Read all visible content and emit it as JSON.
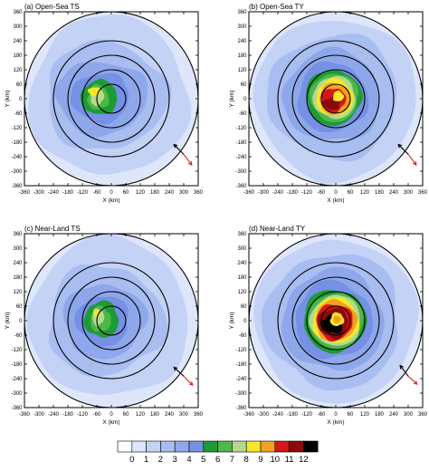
{
  "chart_data": [
    {
      "type": "heatmap",
      "title": "(a) Open-Sea TS",
      "xlabel": "X (km)",
      "ylabel": "Y (km)",
      "xlim": [
        -360,
        360
      ],
      "ylim": [
        -360,
        360
      ],
      "ticks": [
        -360,
        -300,
        -240,
        -180,
        -120,
        -60,
        0,
        60,
        120,
        180,
        240,
        300,
        360
      ],
      "rings_km": [
        60,
        120,
        180,
        240,
        360
      ],
      "center_offset_km": [
        0,
        0
      ],
      "field_levels": [
        {
          "level": 1,
          "r": 330,
          "cx": -10,
          "cy": 10,
          "sx": 1.0,
          "sy": 1.0,
          "wob": 0.08
        },
        {
          "level": 2,
          "r": 250,
          "cx": -25,
          "cy": 10,
          "sx": 1.0,
          "sy": 0.9,
          "wob": 0.12
        },
        {
          "level": 3,
          "r": 180,
          "cx": -40,
          "cy": 5,
          "sx": 1.05,
          "sy": 0.85,
          "wob": 0.12
        },
        {
          "level": 4,
          "r": 120,
          "cx": -45,
          "cy": 5,
          "sx": 1.0,
          "sy": 0.85,
          "wob": 0.12
        },
        {
          "level": 5,
          "r": 80,
          "cx": -50,
          "cy": 5,
          "sx": 0.95,
          "sy": 0.9,
          "wob": 0.1
        },
        {
          "level": 6,
          "r": 52,
          "cx": -55,
          "cy": 5,
          "sx": 0.85,
          "sy": 1.0,
          "wob": 0.15
        },
        {
          "level": 7,
          "r": 35,
          "cx": -60,
          "cy": 10,
          "sx": 0.8,
          "sy": 1.1,
          "wob": 0.15
        },
        {
          "level": 8,
          "r": 22,
          "cx": -70,
          "cy": 30,
          "sx": 1.2,
          "sy": 0.8,
          "wob": 0.15
        }
      ],
      "shear_arrow": {
        "dx": -0.55,
        "dy": 0.55
      },
      "motion_arrow": {
        "dx": 0.45,
        "dy": -0.6
      }
    },
    {
      "type": "heatmap",
      "title": "(b) Open-Sea TY",
      "xlabel": "X (km)",
      "ylabel": "Y (km)",
      "xlim": [
        -360,
        360
      ],
      "ylim": [
        -360,
        360
      ],
      "ticks": [
        -360,
        -300,
        -240,
        -180,
        -120,
        -60,
        0,
        60,
        120,
        180,
        240,
        300,
        360
      ],
      "rings_km": [
        60,
        120,
        180,
        240,
        360
      ],
      "center_offset_km": [
        0,
        0
      ],
      "field_levels": [
        {
          "level": 1,
          "r": 335,
          "cx": 0,
          "cy": 0,
          "sx": 1.0,
          "sy": 1.0,
          "wob": 0.06
        },
        {
          "level": 2,
          "r": 270,
          "cx": -10,
          "cy": 10,
          "sx": 1.0,
          "sy": 0.95,
          "wob": 0.1
        },
        {
          "level": 3,
          "r": 200,
          "cx": -15,
          "cy": 10,
          "sx": 1.0,
          "sy": 0.95,
          "wob": 0.1
        },
        {
          "level": 4,
          "r": 145,
          "cx": -15,
          "cy": 5,
          "sx": 1.0,
          "sy": 1.0,
          "wob": 0.1
        },
        {
          "level": 5,
          "r": 115,
          "cx": -10,
          "cy": 5,
          "sx": 1.0,
          "sy": 1.0,
          "wob": 0.08
        },
        {
          "level": 6,
          "r": 100,
          "cx": -5,
          "cy": 5,
          "sx": 1.0,
          "sy": 1.0,
          "wob": 0.08
        },
        {
          "level": 7,
          "r": 88,
          "cx": -5,
          "cy": 5,
          "sx": 1.0,
          "sy": 1.0,
          "wob": 0.08
        },
        {
          "level": 8,
          "r": 76,
          "cx": -5,
          "cy": 5,
          "sx": 1.0,
          "sy": 1.0,
          "wob": 0.1
        },
        {
          "level": 9,
          "r": 64,
          "cx": -5,
          "cy": 0,
          "sx": 1.0,
          "sy": 1.0,
          "wob": 0.12
        },
        {
          "level": 10,
          "r": 50,
          "cx": -10,
          "cy": -5,
          "sx": 1.0,
          "sy": 1.0,
          "wob": 0.15
        },
        {
          "level": 11,
          "r": 32,
          "cx": -15,
          "cy": -20,
          "sx": 1.1,
          "sy": 0.8,
          "wob": 0.2
        },
        {
          "level": 3,
          "r": 14,
          "cx": 8,
          "cy": 8,
          "sx": 1.0,
          "sy": 1.0,
          "wob": 0.1
        },
        {
          "level": 8,
          "r": 22,
          "cx": 10,
          "cy": 10,
          "sx": 1.0,
          "sy": 1.0,
          "wob": 0.15
        }
      ],
      "shear_arrow": {
        "dx": -0.55,
        "dy": 0.55
      },
      "motion_arrow": {
        "dx": 0.45,
        "dy": -0.6
      }
    },
    {
      "type": "heatmap",
      "title": "(c) Near-Land TS",
      "xlabel": "X (km)",
      "ylabel": "Y (km)",
      "xlim": [
        -360,
        360
      ],
      "ylim": [
        -360,
        360
      ],
      "ticks": [
        -360,
        -300,
        -240,
        -180,
        -120,
        -60,
        0,
        60,
        120,
        180,
        240,
        300,
        360
      ],
      "rings_km": [
        60,
        120,
        180,
        240,
        360
      ],
      "center_offset_km": [
        0,
        0
      ],
      "field_levels": [
        {
          "level": 1,
          "r": 330,
          "cx": -10,
          "cy": 10,
          "sx": 1.0,
          "sy": 1.0,
          "wob": 0.08
        },
        {
          "level": 2,
          "r": 240,
          "cx": -25,
          "cy": 0,
          "sx": 1.0,
          "sy": 0.95,
          "wob": 0.14
        },
        {
          "level": 3,
          "r": 170,
          "cx": -30,
          "cy": 0,
          "sx": 1.0,
          "sy": 0.9,
          "wob": 0.12
        },
        {
          "level": 4,
          "r": 110,
          "cx": -35,
          "cy": 0,
          "sx": 1.0,
          "sy": 0.95,
          "wob": 0.12
        },
        {
          "level": 5,
          "r": 75,
          "cx": -40,
          "cy": 5,
          "sx": 0.95,
          "sy": 1.0,
          "wob": 0.12
        },
        {
          "level": 6,
          "r": 50,
          "cx": -45,
          "cy": 5,
          "sx": 0.85,
          "sy": 1.05,
          "wob": 0.15
        },
        {
          "level": 7,
          "r": 30,
          "cx": -55,
          "cy": 15,
          "sx": 0.8,
          "sy": 1.2,
          "wob": 0.18
        },
        {
          "level": 8,
          "r": 14,
          "cx": -60,
          "cy": 30,
          "sx": 1.0,
          "sy": 1.0,
          "wob": 0.1
        }
      ],
      "shear_arrow": {
        "dx": -0.55,
        "dy": 0.5
      },
      "motion_arrow": {
        "dx": 0.5,
        "dy": -0.5
      }
    },
    {
      "type": "heatmap",
      "title": "(d) Near-Land TY",
      "xlabel": "X (km)",
      "ylabel": "Y (km)",
      "xlim": [
        -360,
        360
      ],
      "ylim": [
        -360,
        360
      ],
      "ticks": [
        -360,
        -300,
        -240,
        -180,
        -120,
        -60,
        0,
        60,
        120,
        180,
        240,
        300,
        360
      ],
      "rings_km": [
        60,
        120,
        180,
        240,
        360
      ],
      "center_offset_km": [
        0,
        0
      ],
      "field_levels": [
        {
          "level": 1,
          "r": 338,
          "cx": 0,
          "cy": 0,
          "sx": 1.0,
          "sy": 1.0,
          "wob": 0.05
        },
        {
          "level": 2,
          "r": 280,
          "cx": -10,
          "cy": 0,
          "sx": 1.0,
          "sy": 1.0,
          "wob": 0.1
        },
        {
          "level": 3,
          "r": 210,
          "cx": -10,
          "cy": 0,
          "sx": 1.0,
          "sy": 1.0,
          "wob": 0.1
        },
        {
          "level": 4,
          "r": 160,
          "cx": -10,
          "cy": 0,
          "sx": 1.0,
          "sy": 1.0,
          "wob": 0.1
        },
        {
          "level": 5,
          "r": 130,
          "cx": -5,
          "cy": 0,
          "sx": 1.0,
          "sy": 1.0,
          "wob": 0.08
        },
        {
          "level": 6,
          "r": 115,
          "cx": 0,
          "cy": 0,
          "sx": 1.0,
          "sy": 1.0,
          "wob": 0.08
        },
        {
          "level": 7,
          "r": 105,
          "cx": 0,
          "cy": 0,
          "sx": 1.0,
          "sy": 1.0,
          "wob": 0.08
        },
        {
          "level": 8,
          "r": 95,
          "cx": 0,
          "cy": 0,
          "sx": 1.0,
          "sy": 1.0,
          "wob": 0.08
        },
        {
          "level": 9,
          "r": 85,
          "cx": 0,
          "cy": 0,
          "sx": 1.0,
          "sy": 1.0,
          "wob": 0.1
        },
        {
          "level": 10,
          "r": 75,
          "cx": -5,
          "cy": -5,
          "sx": 1.0,
          "sy": 1.0,
          "wob": 0.12
        },
        {
          "level": 11,
          "r": 62,
          "cx": -10,
          "cy": -10,
          "sx": 1.0,
          "sy": 1.0,
          "wob": 0.15
        },
        {
          "level": 12,
          "r": 44,
          "cx": -15,
          "cy": -15,
          "sx": 1.0,
          "sy": 0.9,
          "wob": 0.2
        },
        {
          "level": 8,
          "r": 28,
          "cx": 5,
          "cy": 5,
          "sx": 1.0,
          "sy": 1.0,
          "wob": 0.15
        },
        {
          "level": 9,
          "r": 16,
          "cx": 5,
          "cy": 5,
          "sx": 1.0,
          "sy": 1.0,
          "wob": 0.1
        }
      ],
      "shear_arrow": {
        "dx": -0.45,
        "dy": 0.6
      },
      "motion_arrow": {
        "dx": 0.5,
        "dy": -0.45
      }
    }
  ],
  "colorbar": {
    "labels": [
      "0",
      "1",
      "2",
      "3",
      "4",
      "5",
      "6",
      "7",
      "8",
      "9",
      "10",
      "11",
      "12"
    ],
    "colors": [
      "#ffffff",
      "#dde6fa",
      "#c3d2f5",
      "#a8bdf0",
      "#8ea7ea",
      "#7590e4",
      "#1e9b35",
      "#4db748",
      "#b4d98e",
      "#f5e826",
      "#f2a21f",
      "#d41616",
      "#8a0a0a",
      "#000000"
    ]
  },
  "colors": {
    "ring": "#000000",
    "axis": "#000000",
    "shear_arrow": "#000000",
    "motion_arrow": "#dd2222"
  }
}
